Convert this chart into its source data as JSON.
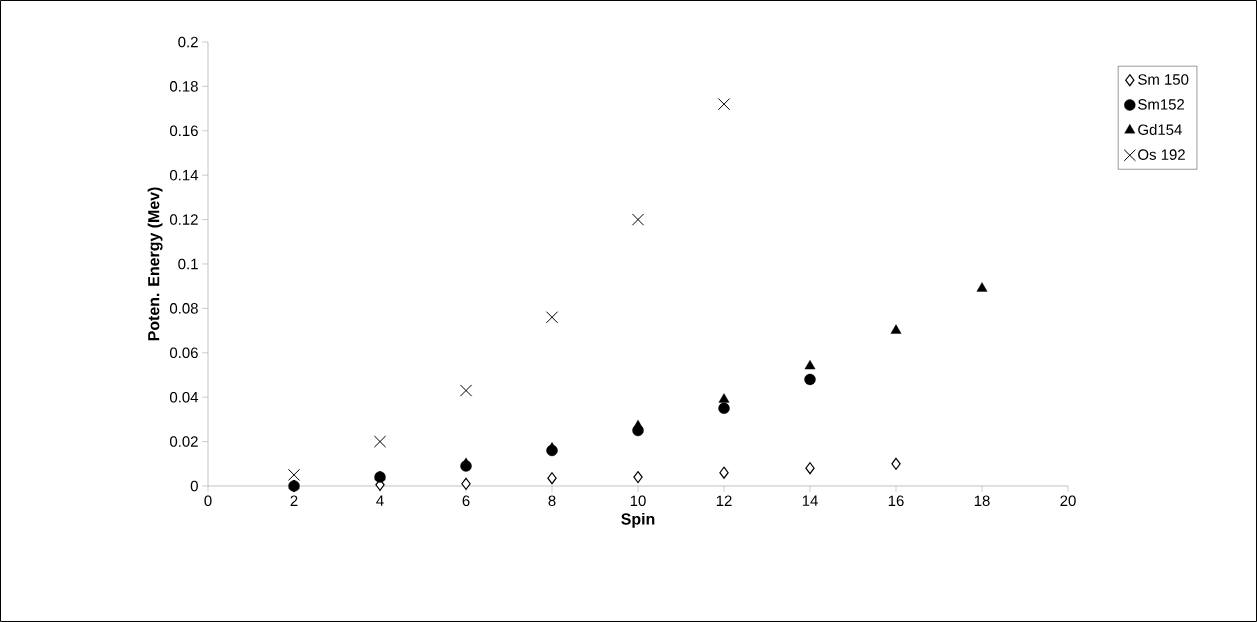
{
  "chart_data": {
    "type": "scatter",
    "xlabel": "Spin",
    "ylabel": "Poten. Energy (Mev)",
    "xlim": [
      0,
      20
    ],
    "xticks": [
      0,
      2,
      4,
      6,
      8,
      10,
      12,
      14,
      16,
      18,
      20
    ],
    "ylim": [
      0,
      0.2
    ],
    "yticks": [
      0,
      0.02,
      0.04,
      0.06,
      0.08,
      0.1,
      0.12,
      0.14,
      0.16,
      0.18,
      0.2
    ],
    "grid": false,
    "legend": "top right",
    "series": [
      {
        "name": "Sm 150",
        "color": "#000000",
        "marker": "diamond",
        "x": [
          2,
          4,
          6,
          8,
          10,
          12,
          14,
          16
        ],
        "values": [
          0,
          0.0005,
          0.001,
          0.0035,
          0.004,
          0.006,
          0.008,
          0.01
        ]
      },
      {
        "name": "Sm152",
        "color": "#000000",
        "marker": "circle",
        "x": [
          2,
          4,
          6,
          8,
          10,
          12,
          14
        ],
        "values": [
          0,
          0.004,
          0.009,
          0.016,
          0.025,
          0.035,
          0.048
        ]
      },
      {
        "name": "Gd154",
        "color": "#000000",
        "marker": "triangle",
        "x": [
          2,
          4,
          6,
          8,
          10,
          12,
          14,
          16,
          18
        ],
        "values": [
          0,
          0.004,
          0.01,
          0.017,
          0.027,
          0.039,
          0.054,
          0.07,
          0.089
        ]
      },
      {
        "name": "Os 192",
        "color": "#000000",
        "marker": "cross",
        "x": [
          2,
          4,
          6,
          8,
          10,
          12
        ],
        "values": [
          0.005,
          0.02,
          0.043,
          0.076,
          0.12,
          0.172
        ]
      }
    ]
  }
}
